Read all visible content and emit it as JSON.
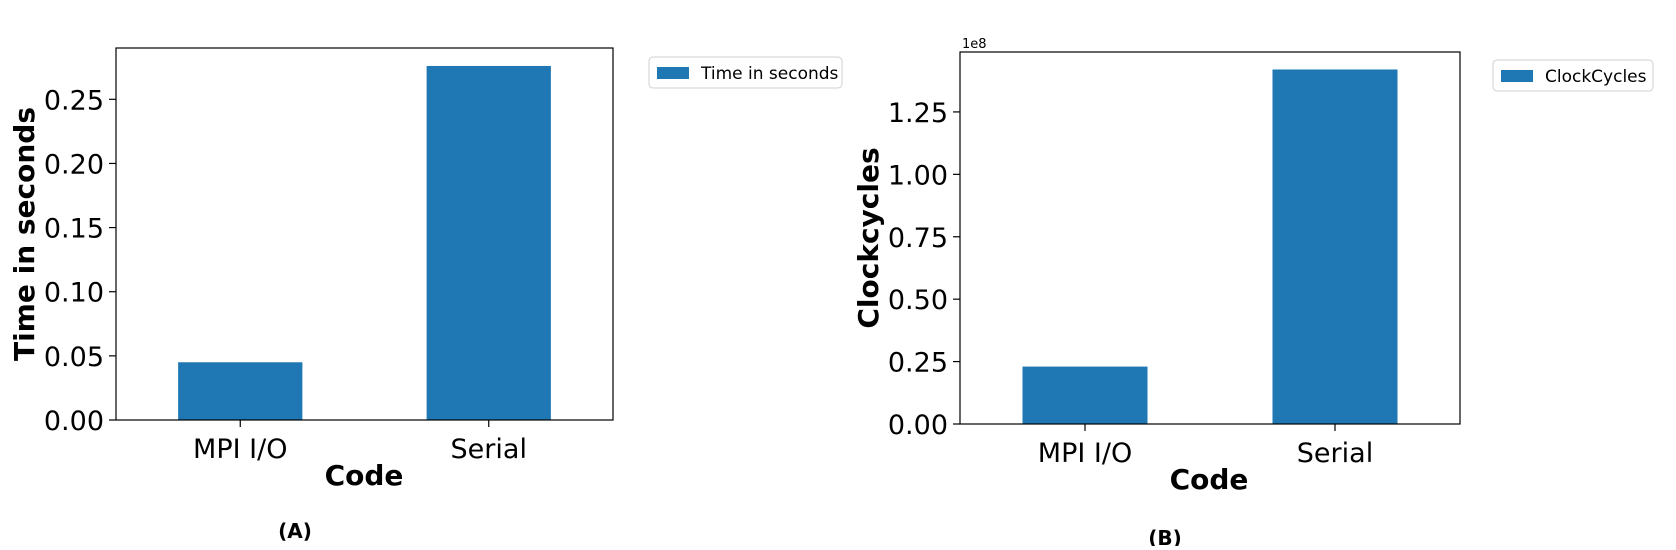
{
  "chart_data": [
    {
      "type": "bar",
      "categories": [
        "MPI I/O",
        "Serial"
      ],
      "values": [
        0.045,
        0.276
      ],
      "xlabel": "Code",
      "ylabel": "Time in seconds",
      "ylim": [
        0,
        0.29
      ],
      "yticks": [
        0.0,
        0.05,
        0.1,
        0.15,
        0.2,
        0.25
      ],
      "ytick_labels": [
        "0.00",
        "0.05",
        "0.10",
        "0.15",
        "0.20",
        "0.25"
      ],
      "series": [
        {
          "name": "Time in seconds",
          "values": [
            0.045,
            0.276
          ]
        }
      ],
      "legend": "outside-upper-right",
      "color": "#1f77b4",
      "caption": "(A)",
      "offset_label": ""
    },
    {
      "type": "bar",
      "categories": [
        "MPI I/O",
        "Serial"
      ],
      "values": [
        23000000,
        142000000
      ],
      "xlabel": "Code",
      "ylabel": "Clockcycles",
      "ylim": [
        0,
        149000000
      ],
      "yticks": [
        0,
        25000000,
        50000000,
        75000000,
        100000000,
        125000000
      ],
      "ytick_labels": [
        "0.00",
        "0.25",
        "0.50",
        "0.75",
        "1.00",
        "1.25"
      ],
      "series": [
        {
          "name": "ClockCycles",
          "values": [
            23000000,
            142000000
          ]
        }
      ],
      "legend": "outside-upper-right",
      "color": "#1f77b4",
      "caption": "(B)",
      "offset_label": "1e8"
    }
  ]
}
